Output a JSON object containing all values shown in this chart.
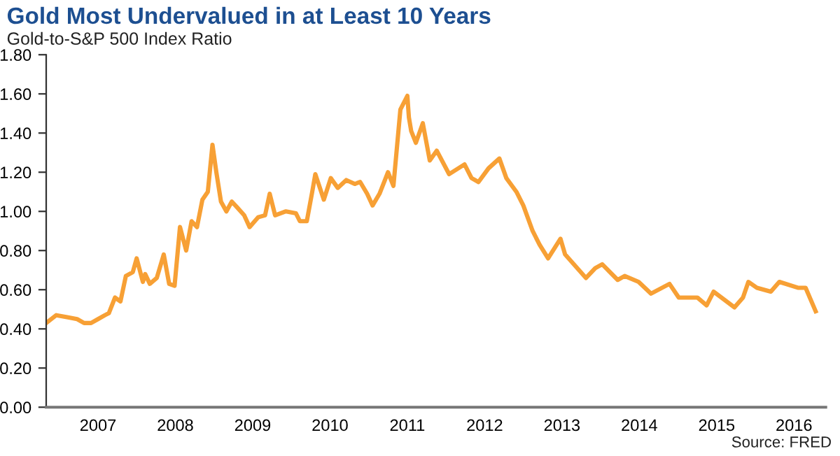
{
  "chart_data": {
    "type": "line",
    "title": "Gold Most Undervalued in at Least 10 Years",
    "subtitle": "Gold-to-S&P 500 Index Ratio",
    "annotations": [
      "Source: FRED"
    ],
    "x": [
      2006.33,
      2006.46,
      2006.6,
      2006.73,
      2006.82,
      2006.91,
      2007.0,
      2007.09,
      2007.14,
      2007.22,
      2007.29,
      2007.36,
      2007.45,
      2007.5,
      2007.58,
      2007.61,
      2007.67,
      2007.76,
      2007.85,
      2007.92,
      2007.99,
      2008.06,
      2008.14,
      2008.21,
      2008.28,
      2008.35,
      2008.42,
      2008.48,
      2008.53,
      2008.59,
      2008.66,
      2008.73,
      2008.8,
      2008.89,
      2008.96,
      2009.07,
      2009.16,
      2009.22,
      2009.29,
      2009.43,
      2009.56,
      2009.61,
      2009.7,
      2009.77,
      2009.81,
      2009.92,
      2010.01,
      2010.1,
      2010.21,
      2010.32,
      2010.39,
      2010.48,
      2010.55,
      2010.64,
      2010.75,
      2010.82,
      2010.91,
      2011.0,
      2011.02,
      2011.05,
      2011.11,
      2011.2,
      2011.29,
      2011.38,
      2011.54,
      2011.74,
      2011.83,
      2011.92,
      2012.05,
      2012.19,
      2012.28,
      2012.41,
      2012.5,
      2012.62,
      2012.71,
      2012.82,
      2012.98,
      2013.04,
      2013.22,
      2013.31,
      2013.43,
      2013.52,
      2013.72,
      2013.81,
      2013.99,
      2014.15,
      2014.39,
      2014.51,
      2014.75,
      2014.87,
      2014.96,
      2015.23,
      2015.34,
      2015.41,
      2015.52,
      2015.7,
      2015.81,
      2016.05,
      2016.15,
      2016.28
    ],
    "series": [
      {
        "color": "#f7a035",
        "values": [
          0.43,
          0.47,
          0.46,
          0.45,
          0.43,
          0.43,
          0.45,
          0.47,
          0.48,
          0.56,
          0.54,
          0.67,
          0.69,
          0.76,
          0.64,
          0.68,
          0.63,
          0.66,
          0.78,
          0.63,
          0.62,
          0.92,
          0.8,
          0.95,
          0.92,
          1.06,
          1.1,
          1.34,
          1.2,
          1.05,
          1.0,
          1.05,
          1.02,
          0.98,
          0.92,
          0.97,
          0.98,
          1.09,
          0.98,
          1.0,
          0.99,
          0.95,
          0.95,
          1.1,
          1.19,
          1.06,
          1.17,
          1.12,
          1.16,
          1.14,
          1.15,
          1.09,
          1.03,
          1.09,
          1.2,
          1.13,
          1.52,
          1.59,
          1.48,
          1.41,
          1.35,
          1.45,
          1.26,
          1.31,
          1.19,
          1.24,
          1.17,
          1.15,
          1.22,
          1.27,
          1.17,
          1.1,
          1.03,
          0.9,
          0.83,
          0.76,
          0.86,
          0.78,
          0.7,
          0.66,
          0.71,
          0.73,
          0.65,
          0.67,
          0.64,
          0.58,
          0.63,
          0.56,
          0.56,
          0.52,
          0.59,
          0.51,
          0.56,
          0.64,
          0.61,
          0.59,
          0.64,
          0.61,
          0.61,
          0.49
        ]
      }
    ],
    "xlim": [
      2006.33,
      2016.41
    ],
    "xticks": [
      2007,
      2008,
      2009,
      2010,
      2011,
      2012,
      2013,
      2014,
      2015,
      2016
    ],
    "ylim": [
      0,
      1.8
    ],
    "yticks": [
      {
        "value": 0,
        "label": "0.00"
      },
      {
        "value": 0.2,
        "label": "0.20"
      },
      {
        "value": 0.4,
        "label": "0.40"
      },
      {
        "value": 0.6,
        "label": "0.60"
      },
      {
        "value": 0.8,
        "label": "0.80"
      },
      {
        "value": 1.0,
        "label": "1.00"
      },
      {
        "value": 1.2,
        "label": "1.20"
      },
      {
        "value": 1.4,
        "label": "1.40"
      },
      {
        "value": 1.6,
        "label": "1.60"
      },
      {
        "value": 1.8,
        "label": "1.80"
      }
    ],
    "grid": false,
    "legend": false
  }
}
